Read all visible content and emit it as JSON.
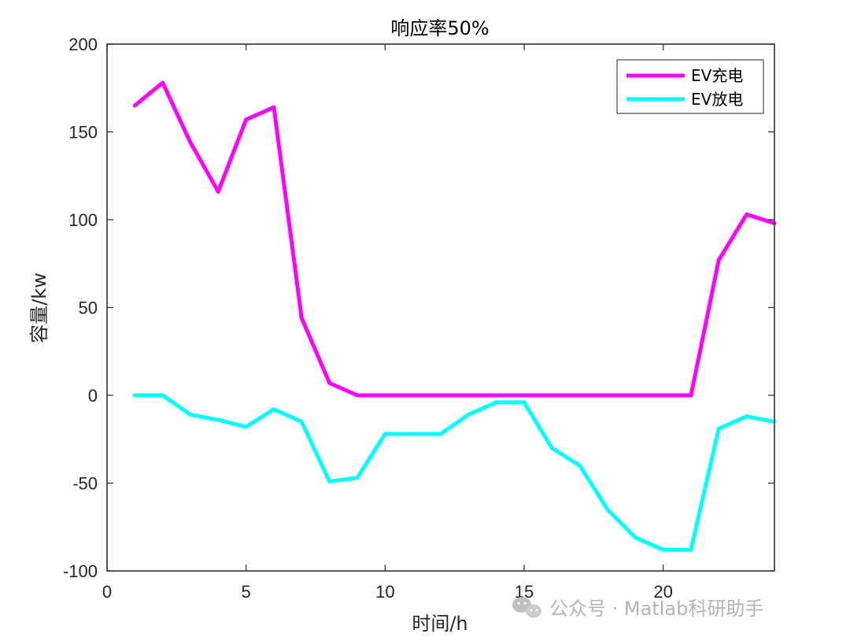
{
  "chart_data": {
    "type": "line",
    "title": "响应率50%",
    "xlabel": "时间/h",
    "ylabel": "容量/kw",
    "xlim": [
      0,
      24
    ],
    "ylim": [
      -100,
      200
    ],
    "xticks": [
      0,
      5,
      10,
      15,
      20
    ],
    "yticks": [
      -100,
      -50,
      0,
      50,
      100,
      150,
      200
    ],
    "grid": false,
    "legend_position": "top-right",
    "x": [
      1,
      2,
      3,
      4,
      5,
      6,
      7,
      8,
      9,
      10,
      11,
      12,
      13,
      14,
      15,
      16,
      17,
      18,
      19,
      20,
      21,
      22,
      23,
      24
    ],
    "series": [
      {
        "name": "EV充电",
        "color": "#ff00ff",
        "values": [
          165,
          178,
          144,
          116,
          157,
          164,
          44,
          7,
          0,
          0,
          0,
          0,
          0,
          0,
          0,
          0,
          0,
          0,
          0,
          0,
          0,
          77,
          103,
          98
        ]
      },
      {
        "name": "EV放电",
        "color": "#00ffff",
        "values": [
          0,
          0,
          -11,
          -14,
          -18,
          -8,
          -15,
          -49,
          -47,
          -22,
          -22,
          -22,
          -11,
          -4,
          -4,
          -30,
          -40,
          -65,
          -81,
          -88,
          -88,
          -19,
          -12,
          -15
        ]
      }
    ]
  },
  "watermark": {
    "icon": "wechat-icon",
    "text": "公众号 · Matlab科研助手"
  }
}
